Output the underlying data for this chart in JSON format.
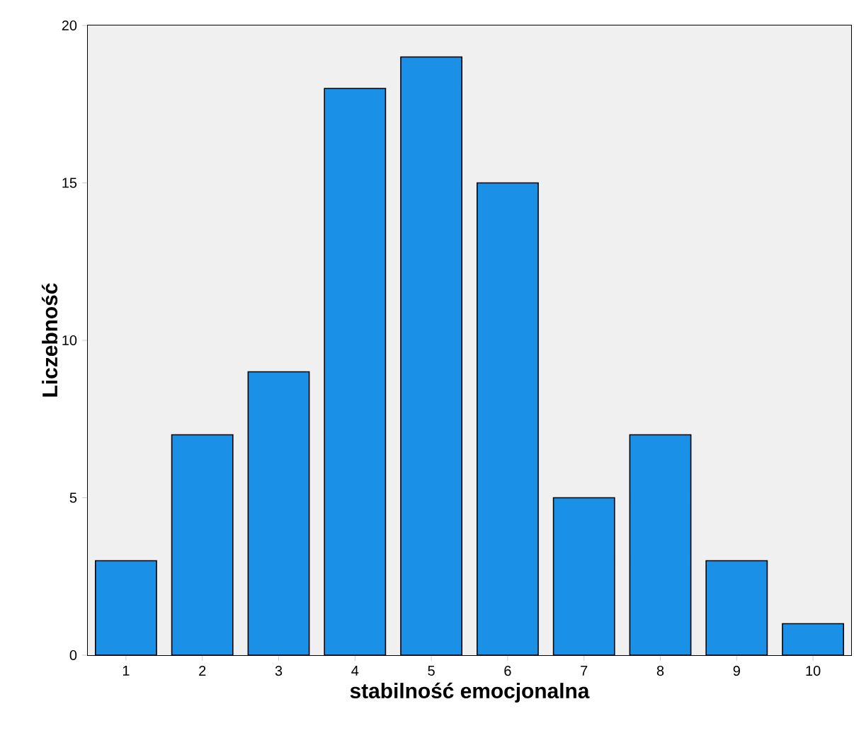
{
  "chart_data": {
    "type": "bar",
    "xlabel": "stabilność emocjonalna",
    "ylabel": "Liczebność",
    "categories": [
      "1",
      "2",
      "3",
      "4",
      "5",
      "6",
      "7",
      "8",
      "9",
      "10"
    ],
    "values": [
      3,
      7,
      9,
      18,
      19,
      15,
      5,
      7,
      3,
      1
    ],
    "color": "#1a90e6",
    "ylim": [
      0,
      20
    ],
    "yticks": [
      0,
      5,
      10,
      15,
      20
    ]
  }
}
